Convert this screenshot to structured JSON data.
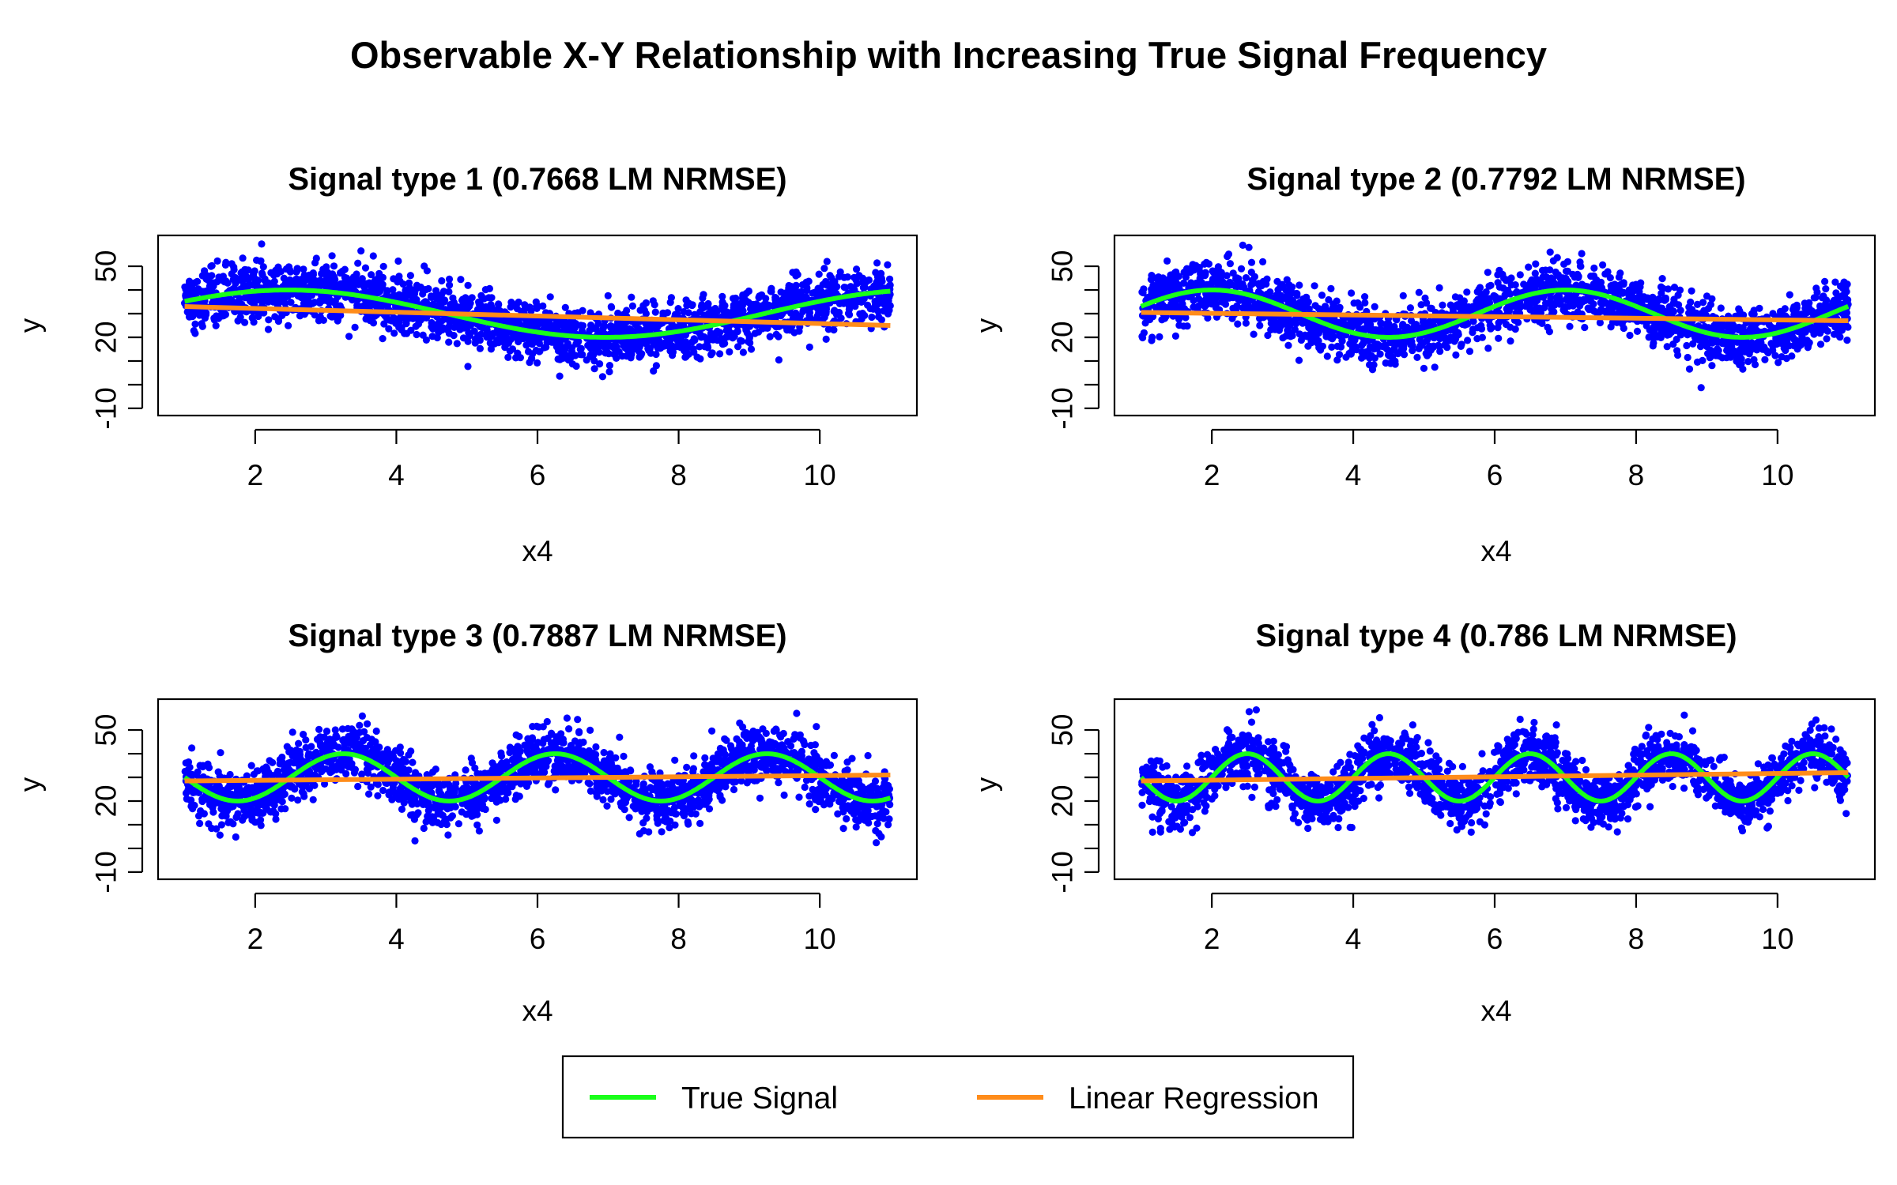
{
  "figure": {
    "title": "Observable X-Y Relationship with Increasing True Signal Frequency"
  },
  "legend": {
    "entries": [
      {
        "label": "True Signal",
        "color": "#1aff1a"
      },
      {
        "label": "Linear Regression",
        "color": "#ff8c1a"
      }
    ],
    "placement": "bottom-center"
  },
  "colors": {
    "points": "#0000ff",
    "true_signal": "#1aff1a",
    "linear_regression": "#ff8c1a"
  },
  "chart_data": [
    {
      "type": "scatter",
      "title": "Signal type 1 (0.7668 LM NRMSE)",
      "xlabel": "x4",
      "ylabel": "y",
      "xlim": [
        1,
        11
      ],
      "ylim": [
        -10,
        60
      ],
      "xticks": [
        2,
        4,
        6,
        8,
        10
      ],
      "yticks": [
        -10,
        0,
        10,
        20,
        30,
        40,
        50
      ],
      "ytick_labels": [
        "-10",
        "",
        "",
        "20",
        "",
        "",
        "50"
      ],
      "grid": false,
      "true_signal": {
        "name": "True Signal",
        "form": "sine",
        "center": 30,
        "amplitude": 10,
        "period": 9,
        "phase_x": 0
      },
      "linear_regression": {
        "name": "Linear Regression",
        "x": [
          1,
          11
        ],
        "y": [
          33,
          25
        ]
      },
      "noise_sd": 6
    },
    {
      "type": "scatter",
      "title": "Signal type 2 (0.7792 LM NRMSE)",
      "xlabel": "x4",
      "ylabel": "y",
      "xlim": [
        1,
        11
      ],
      "ylim": [
        -10,
        60
      ],
      "xticks": [
        2,
        4,
        6,
        8,
        10
      ],
      "yticks": [
        -10,
        0,
        10,
        20,
        30,
        40,
        50
      ],
      "ytick_labels": [
        "-10",
        "",
        "",
        "20",
        "",
        "",
        "50"
      ],
      "grid": false,
      "true_signal": {
        "name": "True Signal",
        "form": "sine",
        "center": 30,
        "amplitude": 10,
        "period": 5,
        "phase_x": -0.25
      },
      "linear_regression": {
        "name": "Linear Regression",
        "x": [
          1,
          11
        ],
        "y": [
          30.5,
          27
        ]
      },
      "noise_sd": 6
    },
    {
      "type": "scatter",
      "title": "Signal type 3 (0.7887 LM NRMSE)",
      "xlabel": "x4",
      "ylabel": "y",
      "xlim": [
        1,
        11
      ],
      "ylim": [
        -10,
        60
      ],
      "xticks": [
        2,
        4,
        6,
        8,
        10
      ],
      "yticks": [
        -10,
        0,
        10,
        20,
        30,
        40,
        50
      ],
      "ytick_labels": [
        "-10",
        "",
        "",
        "20",
        "",
        "",
        "50"
      ],
      "grid": false,
      "true_signal": {
        "name": "True Signal",
        "form": "sine",
        "center": 30,
        "amplitude": 10,
        "period": 3,
        "phase_x": 1.5
      },
      "linear_regression": {
        "name": "Linear Regression",
        "x": [
          1,
          11
        ],
        "y": [
          28.5,
          31
        ]
      },
      "noise_sd": 6
    },
    {
      "type": "scatter",
      "title": "Signal type 4 (0.786 LM NRMSE)",
      "xlabel": "x4",
      "ylabel": "y",
      "xlim": [
        1,
        11
      ],
      "ylim": [
        -10,
        60
      ],
      "xticks": [
        2,
        4,
        6,
        8,
        10
      ],
      "yticks": [
        -10,
        0,
        10,
        20,
        30,
        40,
        50
      ],
      "ytick_labels": [
        "-10",
        "",
        "",
        "20",
        "",
        "",
        "50"
      ],
      "grid": false,
      "true_signal": {
        "name": "True Signal",
        "form": "sine",
        "center": 30,
        "amplitude": 10,
        "period": 2,
        "phase_x": 1.0
      },
      "linear_regression": {
        "name": "Linear Regression",
        "x": [
          1,
          11
        ],
        "y": [
          28.5,
          32
        ]
      },
      "noise_sd": 6
    }
  ]
}
